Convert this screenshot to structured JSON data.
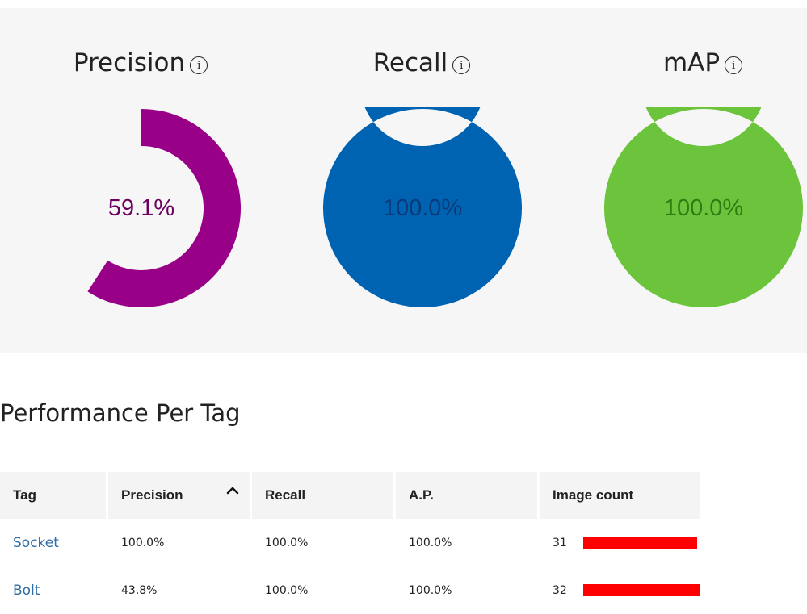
{
  "metrics": [
    {
      "label": "Precision",
      "value": 59.1,
      "display": "59.1%",
      "color": "#990088",
      "text_color": "#6b0060"
    },
    {
      "label": "Recall",
      "value": 100.0,
      "display": "100.0%",
      "color": "#0063b1",
      "text_color": "#0b3a78"
    },
    {
      "label": "mAP",
      "value": 100.0,
      "display": "100.0%",
      "color": "#6bc43b",
      "text_color": "#2e7d12"
    }
  ],
  "info_icon_glyph": "i",
  "section_title": "Performance Per Tag",
  "table": {
    "headers": [
      "Tag",
      "Precision",
      "Recall",
      "A.P.",
      "Image count"
    ],
    "sorted_column": "Precision",
    "sort_direction": "ascending",
    "rows": [
      {
        "tag": "Socket",
        "precision": "100.0%",
        "recall": "100.0%",
        "ap": "100.0%",
        "image_count": 31
      },
      {
        "tag": "Bolt",
        "precision": "43.8%",
        "recall": "100.0%",
        "ap": "100.0%",
        "image_count": 32
      }
    ],
    "bar_color": "#ff0000"
  }
}
